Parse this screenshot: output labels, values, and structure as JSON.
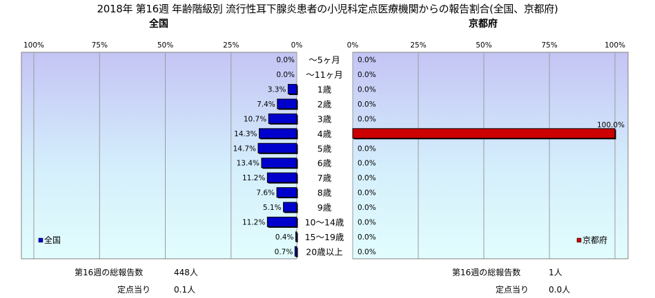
{
  "title": "2018年 第16週 年齢階級別 流行性耳下腺炎患者の小児科定点医療機関からの報告割合(全国、京都府)",
  "chart_data": {
    "type": "bar",
    "categories": [
      "～5ヶ月",
      "～11ヶ月",
      "1歳",
      "2歳",
      "3歳",
      "4歳",
      "5歳",
      "6歳",
      "7歳",
      "8歳",
      "9歳",
      "10～14歳",
      "15～19歳",
      "20歳以上"
    ],
    "panels": [
      {
        "title": "全国",
        "legend": "全国",
        "color": "#0000cc",
        "values": [
          0.0,
          0.0,
          3.3,
          7.4,
          10.7,
          14.3,
          14.7,
          13.4,
          11.2,
          7.6,
          5.1,
          11.2,
          0.4,
          0.7
        ],
        "value_labels": [
          "0.0%",
          "0.0%",
          "3.3%",
          "7.4%",
          "10.7%",
          "14.3%",
          "14.7%",
          "13.4%",
          "11.2%",
          "7.6%",
          "5.1%",
          "11.2%",
          "0.4%",
          "0.7%"
        ],
        "axis_ticks": [
          "100%",
          "75%",
          "50%",
          "25%",
          "0%"
        ],
        "xlim": [
          0,
          100
        ],
        "reversed": true,
        "footer": [
          {
            "label": "第16週の総報告数",
            "value": "448人"
          },
          {
            "label": "定点当り",
            "value": "0.1人"
          }
        ]
      },
      {
        "title": "京都府",
        "legend": "京都府",
        "color": "#cc0000",
        "values": [
          0.0,
          0.0,
          0.0,
          0.0,
          0.0,
          100.0,
          0.0,
          0.0,
          0.0,
          0.0,
          0.0,
          0.0,
          0.0,
          0.0
        ],
        "value_labels": [
          "0.0%",
          "0.0%",
          "0.0%",
          "0.0%",
          "0.0%",
          "100.0%",
          "0.0%",
          "0.0%",
          "0.0%",
          "0.0%",
          "0.0%",
          "0.0%",
          "0.0%",
          "0.0%"
        ],
        "axis_ticks": [
          "0%",
          "25%",
          "50%",
          "75%",
          "100%"
        ],
        "xlim": [
          0,
          100
        ],
        "reversed": false,
        "footer": [
          {
            "label": "第16週の総報告数",
            "value": "1人"
          },
          {
            "label": "定点当り",
            "value": "0.0人"
          }
        ]
      }
    ],
    "grid": true,
    "legend_position": "bottom-left / bottom-right"
  }
}
